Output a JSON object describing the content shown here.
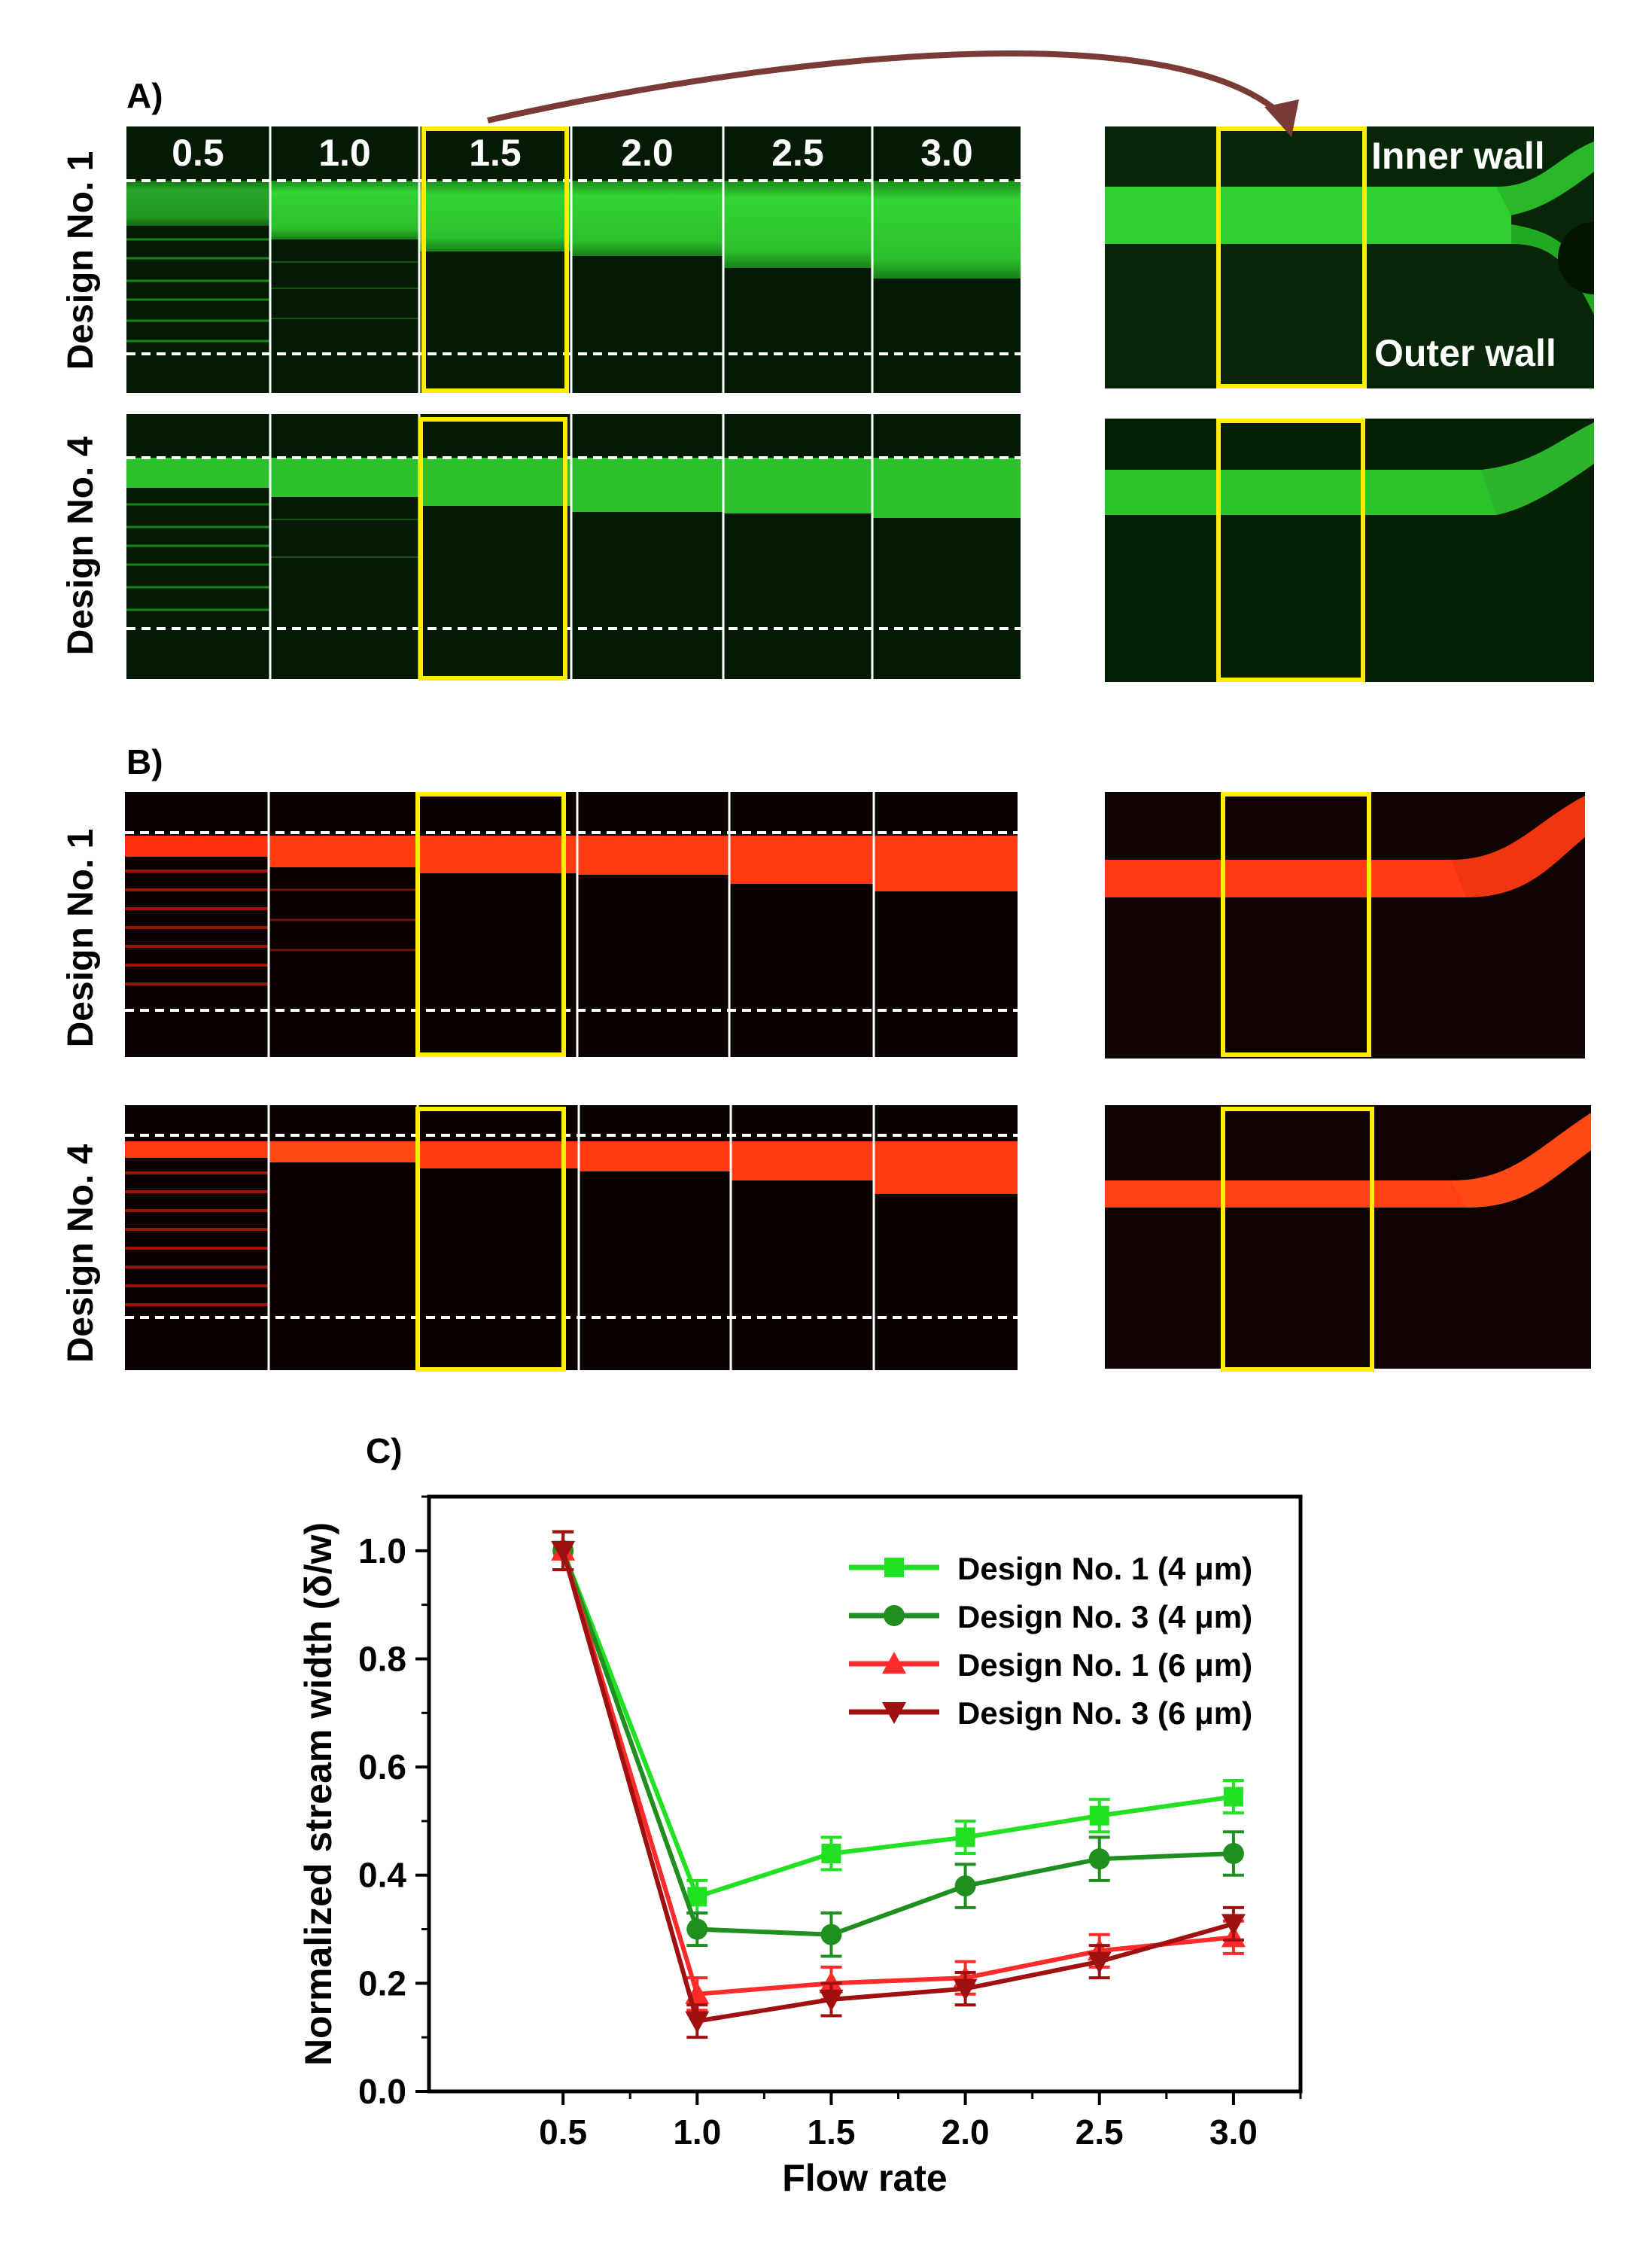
{
  "panels": {
    "a": {
      "label": "A)"
    },
    "b": {
      "label": "B)"
    },
    "c": {
      "label": "C)"
    }
  },
  "row_labels": {
    "design1": "Design No. 1",
    "design4": "Design No. 4"
  },
  "flow_rates": [
    "0.5",
    "1.0",
    "1.5",
    "2.0",
    "2.5",
    "3.0"
  ],
  "wall_labels": {
    "inner": "Inner wall",
    "outer": "Outer wall"
  },
  "colors": {
    "green_stream": "#2bd12b",
    "red_stream": "#ff3a10",
    "highlight": "#ffee00",
    "arrow": "#7a3a36"
  },
  "chart_data": {
    "type": "line",
    "title": "C)",
    "xlabel": "Flow rate",
    "ylabel": "Normalized stream width (δ/w)",
    "x": [
      0.5,
      1.0,
      1.5,
      2.0,
      2.5,
      3.0
    ],
    "xlim": [
      0.0,
      3.25
    ],
    "ylim": [
      0.0,
      1.1
    ],
    "xticks": [
      "0.5",
      "1.0",
      "1.5",
      "2.0",
      "2.5",
      "3.0"
    ],
    "yticks": [
      "0.0",
      "0.2",
      "0.4",
      "0.6",
      "0.8",
      "1.0"
    ],
    "series": [
      {
        "name": "Design No. 1 (4 μm)",
        "color": "#22e022",
        "marker": "square",
        "values": [
          1.0,
          0.36,
          0.44,
          0.47,
          0.51,
          0.545
        ],
        "errors": [
          0.035,
          0.03,
          0.03,
          0.03,
          0.03,
          0.03
        ]
      },
      {
        "name": "Design No. 3 (4 μm)",
        "color": "#1f8f1f",
        "marker": "circle",
        "values": [
          1.0,
          0.3,
          0.29,
          0.38,
          0.43,
          0.44
        ],
        "errors": [
          0.035,
          0.03,
          0.04,
          0.04,
          0.04,
          0.04
        ]
      },
      {
        "name": "Design No. 1 (6 μm)",
        "color": "#ff2a2a",
        "marker": "triangle-up",
        "values": [
          1.0,
          0.18,
          0.2,
          0.21,
          0.26,
          0.285
        ],
        "errors": [
          0.035,
          0.03,
          0.03,
          0.03,
          0.03,
          0.03
        ]
      },
      {
        "name": "Design No. 3 (6 μm)",
        "color": "#a01010",
        "marker": "triangle-down",
        "values": [
          1.0,
          0.13,
          0.17,
          0.19,
          0.24,
          0.31
        ],
        "errors": [
          0.035,
          0.03,
          0.03,
          0.03,
          0.03,
          0.03
        ]
      }
    ]
  }
}
